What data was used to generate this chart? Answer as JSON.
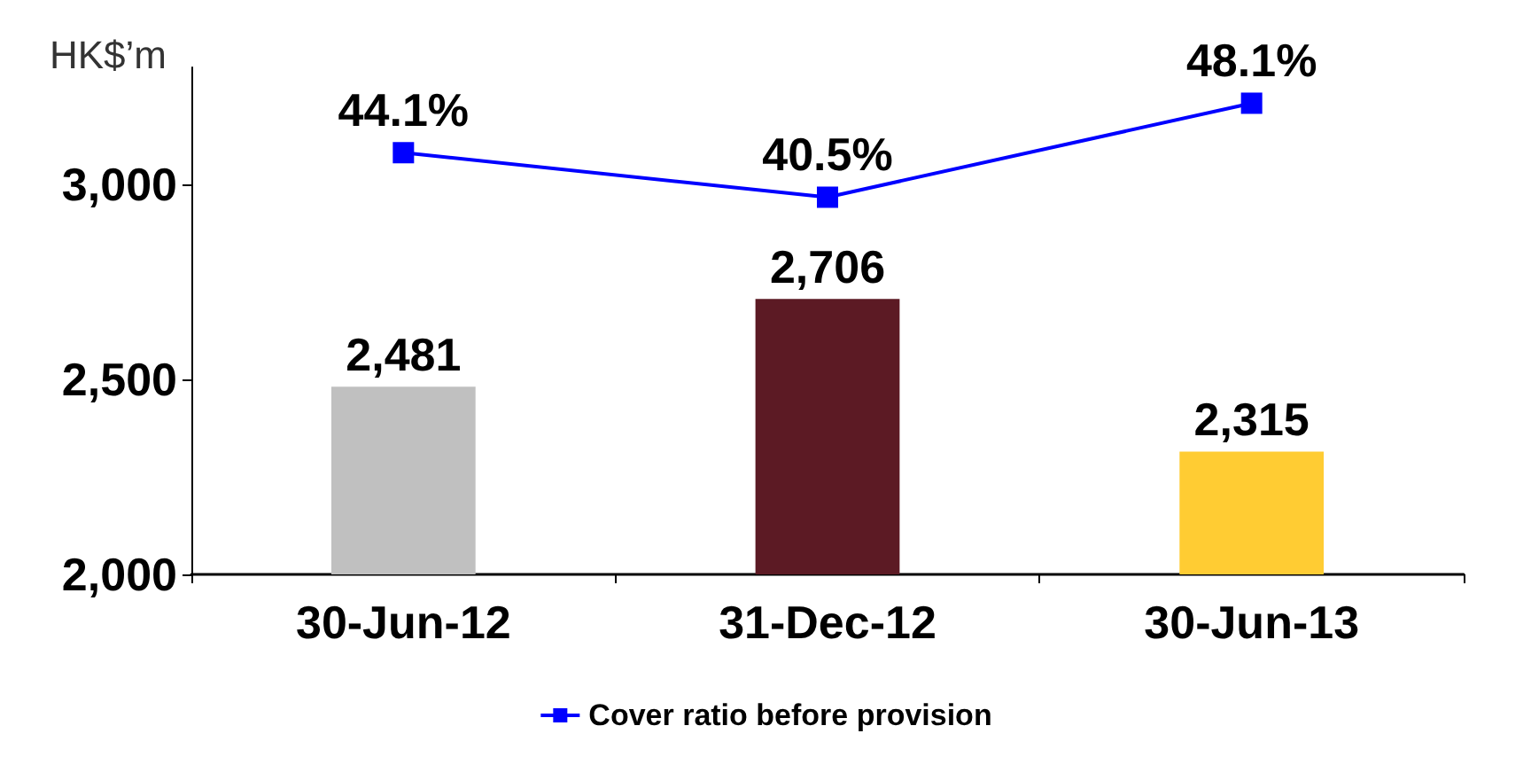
{
  "chart_data": {
    "type": "bar",
    "ylabel": "HK$’m",
    "categories": [
      "30-Jun-12",
      "31-Dec-12",
      "30-Jun-13"
    ],
    "series": [
      {
        "colors": [
          "#c0c0c0",
          "#5c1a24",
          "#ffcc33"
        ],
        "values": [
          2481,
          2706,
          2315
        ],
        "value_labels": [
          "2,481",
          "2,706",
          "2,315"
        ]
      },
      {
        "type": "line",
        "name": "Cover ratio before provision",
        "color": "#0000ff",
        "axis": "y2",
        "values": [
          44.1,
          40.5,
          48.1
        ],
        "value_labels": [
          "44.1%",
          "40.5%",
          "48.1%"
        ]
      }
    ],
    "ylim": [
      2000,
      3300
    ],
    "yticks": [
      {
        "value": 2000,
        "label": "2,000"
      },
      {
        "value": 2500,
        "label": "2,500"
      },
      {
        "value": 3000,
        "label": "3,000"
      }
    ],
    "y2lim": [
      10,
      51
    ],
    "tick_labels": "xy",
    "marker": "square",
    "line_style": "solid",
    "grid": false,
    "legend": "bottom"
  }
}
